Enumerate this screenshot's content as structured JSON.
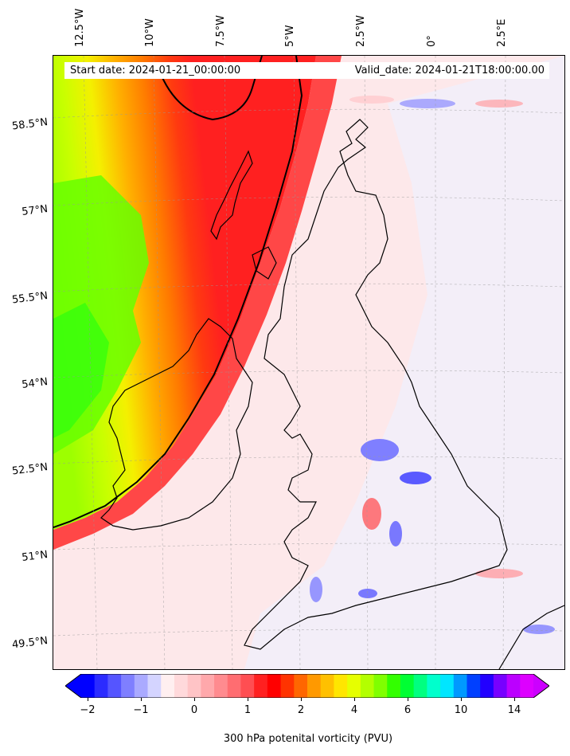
{
  "header": {
    "start_date": "Start date: 2024-01-21_00:00:00",
    "valid_date": "Valid_date: 2024-01-21T18:00:00.00"
  },
  "map": {
    "longitude_labels": [
      "12.5°W",
      "10°W",
      "7.5°W",
      "5°W",
      "2.5°W",
      "0°",
      "2.5°E"
    ],
    "latitude_labels": [
      "58.5°N",
      "57°N",
      "55.5°N",
      "54°N",
      "52.5°N",
      "51°N",
      "49.5°N"
    ]
  },
  "colorbar": {
    "tick_labels": [
      "−2",
      "−1",
      "0",
      "1",
      "2",
      "4",
      "6",
      "10",
      "14"
    ],
    "label": "300 hPa potenital vorticity (PVU)",
    "colors": [
      "#0000ff",
      "#2b2bff",
      "#5555ff",
      "#7f7fff",
      "#aaaaff",
      "#d4d4ff",
      "#ffeff0",
      "#ffd9db",
      "#ffc4c6",
      "#ffa8ab",
      "#ff8b8f",
      "#ff6d71",
      "#ff4e52",
      "#ff2020",
      "#ff0000",
      "#ff3300",
      "#ff6600",
      "#ff9900",
      "#ffc000",
      "#ffe600",
      "#e6ff00",
      "#b3ff00",
      "#80ff00",
      "#33ff00",
      "#00ff33",
      "#00ff80",
      "#00ffcc",
      "#00e6ff",
      "#0099ff",
      "#0040ff",
      "#2200ff",
      "#7700ff",
      "#bb00ff",
      "#dd00ff"
    ],
    "extend_min_color": "#0000ff",
    "extend_max_color": "#cc00ff"
  }
}
